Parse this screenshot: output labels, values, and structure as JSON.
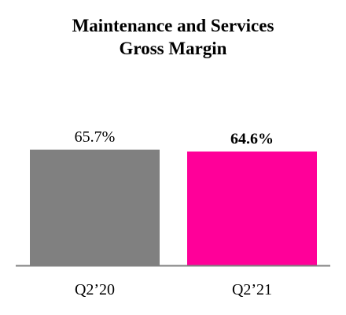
{
  "chart_data": {
    "type": "bar",
    "title": "Maintenance and Services",
    "subtitle": "Gross Margin",
    "categories": [
      "Q2’20",
      "Q2’21"
    ],
    "values": [
      65.7,
      64.6
    ],
    "value_labels": [
      "65.7%",
      "64.6%"
    ],
    "highlight_index": 1,
    "colors": [
      "#808080",
      "#ff0099"
    ],
    "baseline_color": "#808080",
    "xlabel": "",
    "ylabel": "",
    "ylim": [
      0,
      70
    ],
    "grid": false
  }
}
